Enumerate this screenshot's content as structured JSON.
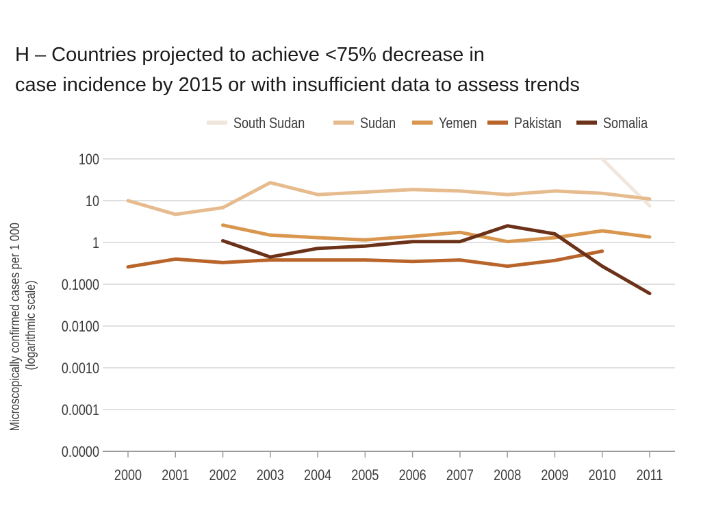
{
  "title_lines": [
    "H – Countries projected to achieve <75% decrease in",
    "case incidence by 2015 or with insufficient data to assess trends"
  ],
  "chart_data": {
    "type": "line",
    "title": "H – Countries projected to achieve <75% decrease in case incidence by 2015 or with insufficient data to assess trends",
    "xlabel": "",
    "ylabel": "Microscopically confirmed cases per 1 000 (logarithmic scale)",
    "ylabel_lines": [
      "Microscopically confirmed cases per 1 000",
      "(logarithmic scale)"
    ],
    "y_scale": "log",
    "ylim": [
      1e-05,
      100
    ],
    "y_tick_values": [
      1e-05,
      0.0001,
      0.001,
      0.01,
      0.1,
      1,
      10,
      100
    ],
    "y_tick_labels": [
      "0.0000",
      "0.0001",
      "0.0010",
      "0.0100",
      "0.1000",
      "1",
      "10",
      "100"
    ],
    "categories": [
      "2000",
      "2001",
      "2002",
      "2003",
      "2004",
      "2005",
      "2006",
      "2007",
      "2008",
      "2009",
      "2010",
      "2011"
    ],
    "grid": true,
    "legend_position": "top-right",
    "series": [
      {
        "name": "South Sudan",
        "color": "#f0e6dc",
        "values": [
          null,
          null,
          null,
          null,
          null,
          null,
          null,
          null,
          null,
          null,
          100,
          7.5
        ]
      },
      {
        "name": "Sudan",
        "color": "#e6bb8e",
        "values": [
          10,
          4.7,
          6.8,
          27,
          14,
          16,
          18.5,
          17,
          14,
          17,
          15,
          11
        ]
      },
      {
        "name": "Yemen",
        "color": "#d9964f",
        "values": [
          null,
          null,
          2.6,
          1.5,
          1.3,
          1.15,
          1.4,
          1.75,
          1.05,
          1.3,
          1.9,
          1.35
        ]
      },
      {
        "name": "Pakistan",
        "color": "#b8642a",
        "values": [
          0.26,
          0.4,
          0.33,
          0.38,
          0.38,
          0.38,
          0.35,
          0.38,
          0.27,
          0.37,
          0.62,
          null
        ]
      },
      {
        "name": "Somalia",
        "color": "#6b3219",
        "values": [
          null,
          null,
          1.1,
          0.45,
          0.72,
          0.82,
          1.05,
          1.05,
          2.5,
          1.6,
          0.27,
          0.06
        ]
      }
    ]
  }
}
